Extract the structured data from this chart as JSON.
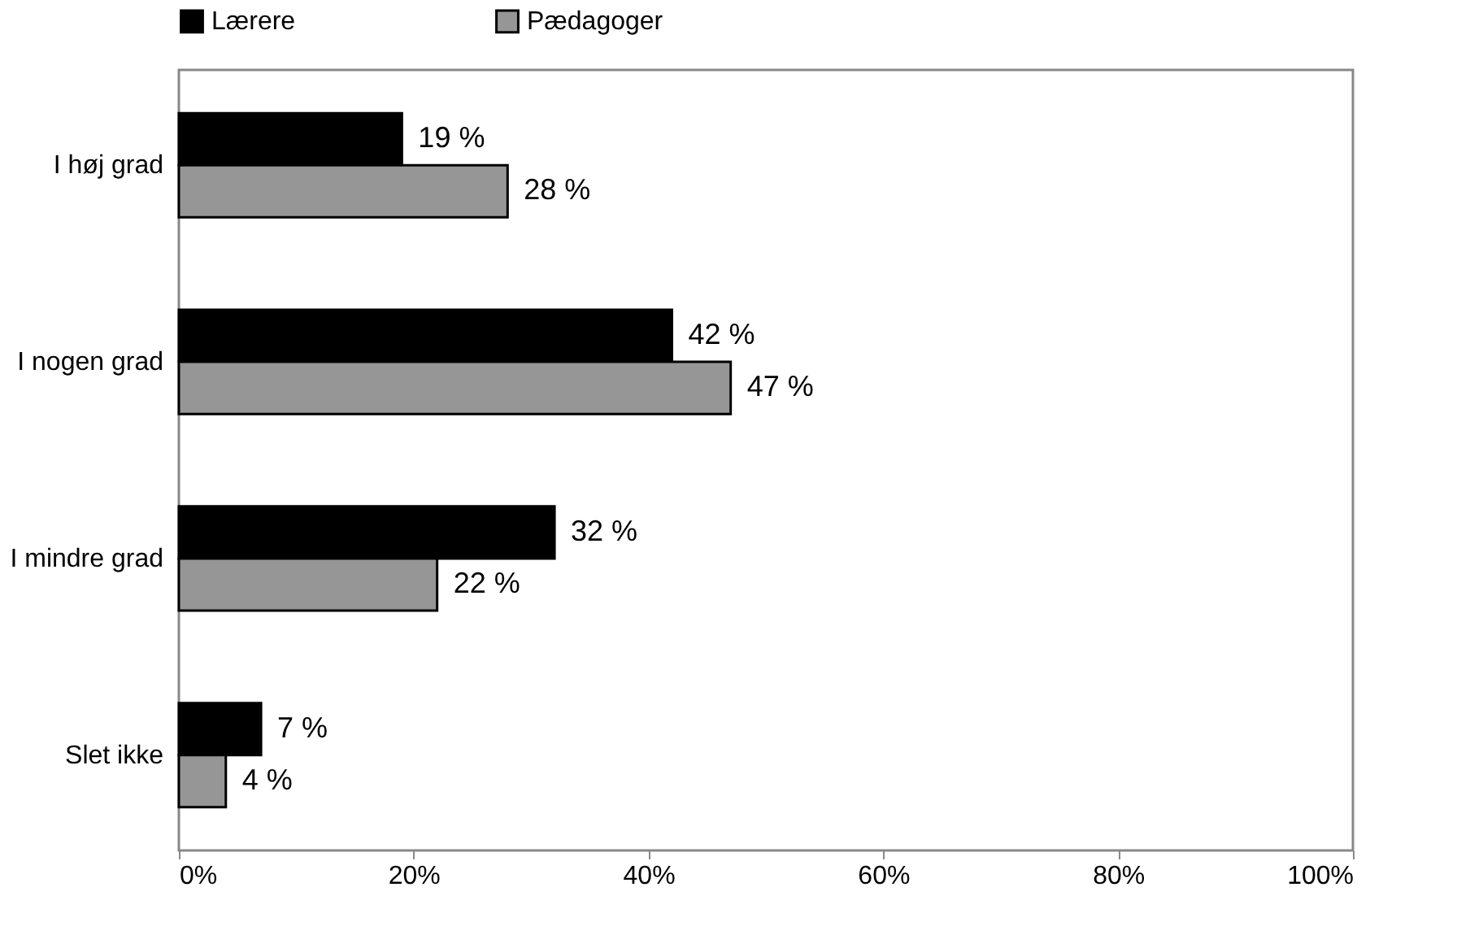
{
  "chart_data": {
    "type": "bar",
    "orientation": "horizontal",
    "categories": [
      "I høj grad",
      "I nogen grad",
      "I mindre grad",
      "Slet ikke"
    ],
    "series": [
      {
        "name": "Lærere",
        "color": "#000000",
        "values": [
          19,
          42,
          32,
          7
        ],
        "value_labels": [
          "19 %",
          "42 %",
          "32 %",
          "7 %"
        ]
      },
      {
        "name": "Pædagoger",
        "color": "#969696",
        "values": [
          28,
          47,
          22,
          4
        ],
        "value_labels": [
          "28 %",
          "47 %",
          "22 %",
          "4 %"
        ]
      }
    ],
    "xlim": [
      0,
      100
    ],
    "xticks": [
      {
        "value": 0,
        "label": "0%"
      },
      {
        "value": 20,
        "label": "20%"
      },
      {
        "value": 40,
        "label": "40%"
      },
      {
        "value": 60,
        "label": "60%"
      },
      {
        "value": 80,
        "label": "80%"
      },
      {
        "value": 100,
        "label": "100%"
      }
    ],
    "grid": false,
    "legend": "top"
  }
}
